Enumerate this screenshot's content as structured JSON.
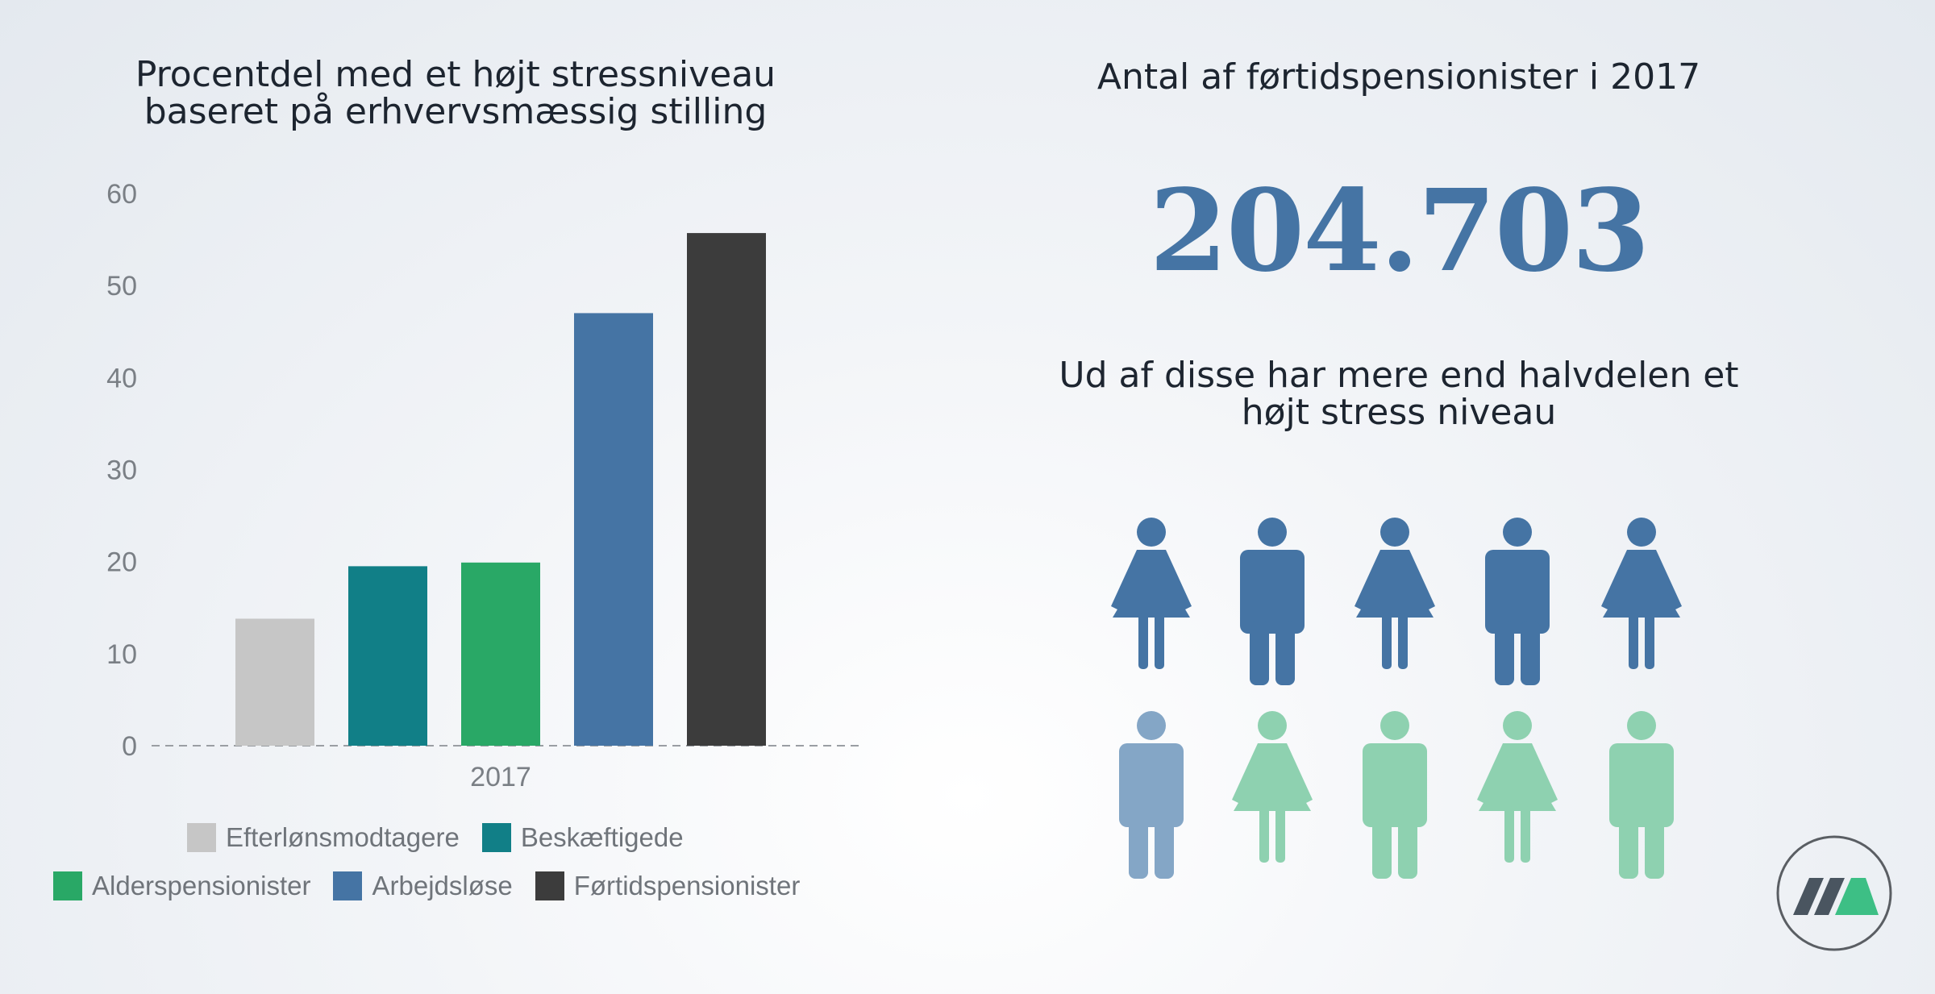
{
  "chart_data": {
    "type": "bar",
    "title_lines": [
      "Procentdel med et højt stressniveau",
      "baseret på erhvervsmæssig stilling"
    ],
    "categories": [
      "2017"
    ],
    "series": [
      {
        "name": "Efterlønsmodtagere",
        "values": [
          13.8
        ],
        "color": "#c6c6c6"
      },
      {
        "name": "Beskæftigede",
        "values": [
          19.5
        ],
        "color": "#117f87"
      },
      {
        "name": "Alderspensionister",
        "values": [
          19.9
        ],
        "color": "#29a866"
      },
      {
        "name": "Arbejdsløse",
        "values": [
          47
        ],
        "color": "#4574a4"
      },
      {
        "name": "Førtidspensionister",
        "values": [
          55.7
        ],
        "color": "#3c3c3c"
      }
    ],
    "yticks": [
      "0",
      "10",
      "20",
      "30",
      "40",
      "50",
      "60"
    ],
    "ylim": [
      0,
      60
    ],
    "xlabel": "",
    "ylabel": "",
    "grid": false,
    "legend": "bottom"
  },
  "stat": {
    "title": "Antal af førtidspensionister i 2017",
    "number": "204.703",
    "subtitle_lines": [
      "Ud af disse har mere end halvdelen et",
      "højt stress niveau"
    ]
  },
  "people_icons": {
    "rows": [
      [
        {
          "type": "woman",
          "color": "#4574a4"
        },
        {
          "type": "man",
          "color": "#4574a4"
        },
        {
          "type": "woman",
          "color": "#4574a4"
        },
        {
          "type": "man",
          "color": "#4574a4"
        },
        {
          "type": "woman",
          "color": "#4574a4"
        }
      ],
      [
        {
          "type": "man",
          "color": "#84a6c6"
        },
        {
          "type": "woman",
          "color": "#8ed1b0"
        },
        {
          "type": "man",
          "color": "#8ed1b0"
        },
        {
          "type": "woman",
          "color": "#8ed1b0"
        },
        {
          "type": "man",
          "color": "#8ed1b0"
        }
      ]
    ]
  },
  "logo": {
    "icon": "company-logo-icon"
  }
}
